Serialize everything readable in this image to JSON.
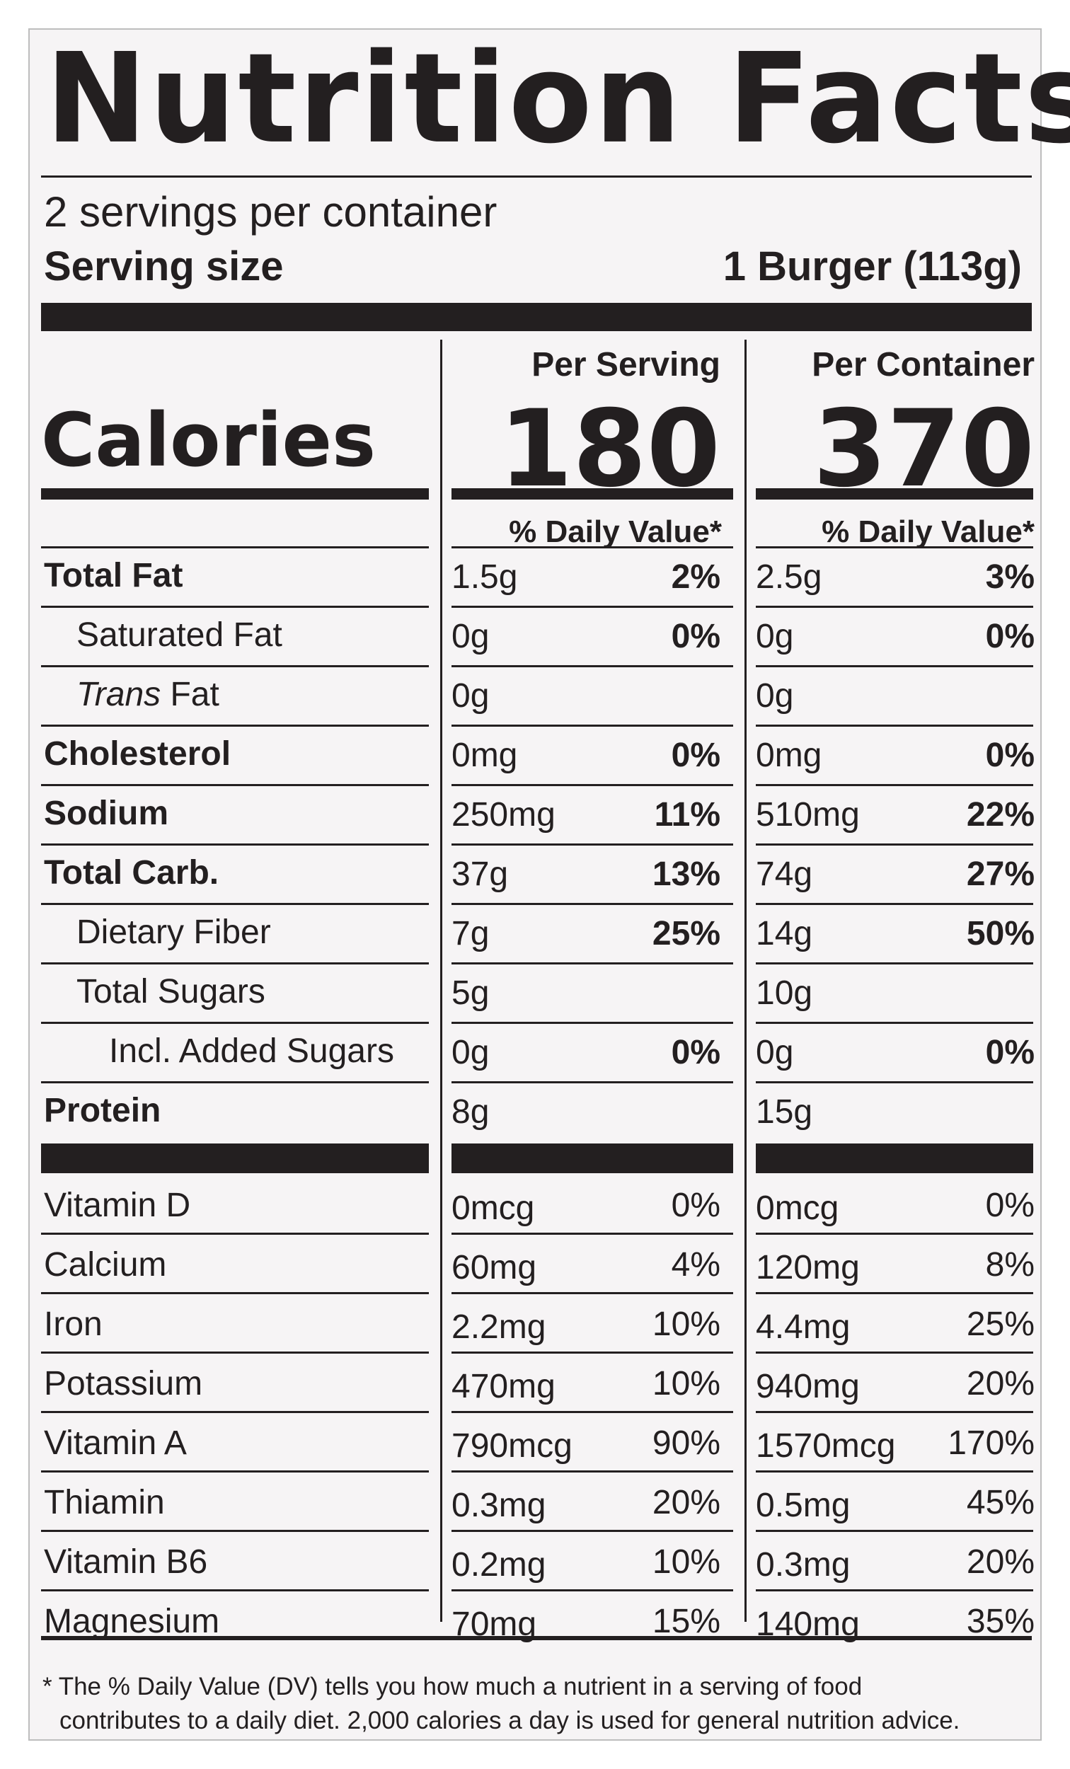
{
  "title": "Nutrition Facts",
  "servings_per_container": "2 servings per container",
  "serving_size_label": "Serving size",
  "serving_size_value": "1 Burger (113g)",
  "calories_label": "Calories",
  "columns": [
    {
      "heading": "Per Serving",
      "calories": "180",
      "dv_heading": "% Daily Value*"
    },
    {
      "heading": "Per Container",
      "calories": "370",
      "dv_heading": "% Daily Value*"
    }
  ],
  "nutrients": [
    {
      "label": "Total Fat",
      "style": "bold",
      "values": [
        {
          "amount": "1.5g",
          "dv": "2%"
        },
        {
          "amount": "2.5g",
          "dv": "3%"
        }
      ]
    },
    {
      "label": "Saturated Fat",
      "style": "indent1",
      "values": [
        {
          "amount": "0g",
          "dv": "0%"
        },
        {
          "amount": "0g",
          "dv": "0%"
        }
      ]
    },
    {
      "label_italic": "Trans",
      "label_rest": " Fat",
      "style": "indent1",
      "values": [
        {
          "amount": "0g",
          "dv": ""
        },
        {
          "amount": "0g",
          "dv": ""
        }
      ]
    },
    {
      "label": "Cholesterol",
      "style": "bold",
      "values": [
        {
          "amount": "0mg",
          "dv": "0%"
        },
        {
          "amount": "0mg",
          "dv": "0%"
        }
      ]
    },
    {
      "label": "Sodium",
      "style": "bold",
      "values": [
        {
          "amount": "250mg",
          "dv": "11%"
        },
        {
          "amount": "510mg",
          "dv": "22%"
        }
      ]
    },
    {
      "label": "Total Carb.",
      "style": "bold",
      "values": [
        {
          "amount": "37g",
          "dv": "13%"
        },
        {
          "amount": "74g",
          "dv": "27%"
        }
      ]
    },
    {
      "label": "Dietary Fiber",
      "style": "indent1",
      "values": [
        {
          "amount": "7g",
          "dv": "25%"
        },
        {
          "amount": "14g",
          "dv": "50%"
        }
      ]
    },
    {
      "label": "Total Sugars",
      "style": "indent1",
      "values": [
        {
          "amount": "5g",
          "dv": ""
        },
        {
          "amount": "10g",
          "dv": ""
        }
      ]
    },
    {
      "label": "Incl. Added Sugars",
      "style": "indent2",
      "values": [
        {
          "amount": "0g",
          "dv": "0%"
        },
        {
          "amount": "0g",
          "dv": "0%"
        }
      ]
    },
    {
      "label": "Protein",
      "style": "bold",
      "values": [
        {
          "amount": "8g",
          "dv": ""
        },
        {
          "amount": "15g",
          "dv": ""
        }
      ]
    }
  ],
  "vitamins": [
    {
      "label": "Vitamin D",
      "values": [
        {
          "amount": "0mcg",
          "dv": "0%"
        },
        {
          "amount": "0mcg",
          "dv": "0%"
        }
      ]
    },
    {
      "label": "Calcium",
      "values": [
        {
          "amount": "60mg",
          "dv": "4%"
        },
        {
          "amount": "120mg",
          "dv": "8%"
        }
      ]
    },
    {
      "label": "Iron",
      "values": [
        {
          "amount": "2.2mg",
          "dv": "10%"
        },
        {
          "amount": "4.4mg",
          "dv": "25%"
        }
      ]
    },
    {
      "label": "Potassium",
      "values": [
        {
          "amount": "470mg",
          "dv": "10%"
        },
        {
          "amount": "940mg",
          "dv": "20%"
        }
      ]
    },
    {
      "label": "Vitamin A",
      "values": [
        {
          "amount": "790mcg",
          "dv": "90%"
        },
        {
          "amount": "1570mcg",
          "dv": "170%"
        }
      ]
    },
    {
      "label": "Thiamin",
      "values": [
        {
          "amount": "0.3mg",
          "dv": "20%"
        },
        {
          "amount": "0.5mg",
          "dv": "45%"
        }
      ]
    },
    {
      "label": "Vitamin B6",
      "values": [
        {
          "amount": "0.2mg",
          "dv": "10%"
        },
        {
          "amount": "0.3mg",
          "dv": "20%"
        }
      ]
    },
    {
      "label": "Magnesium",
      "values": [
        {
          "amount": "70mg",
          "dv": "15%"
        },
        {
          "amount": "140mg",
          "dv": "35%"
        }
      ]
    }
  ],
  "footnote_line1": "* The % Daily Value (DV) tells you how much a nutrient in a serving of food",
  "footnote_line2": "contributes to a daily diet. 2,000 calories a day is used for general nutrition advice."
}
